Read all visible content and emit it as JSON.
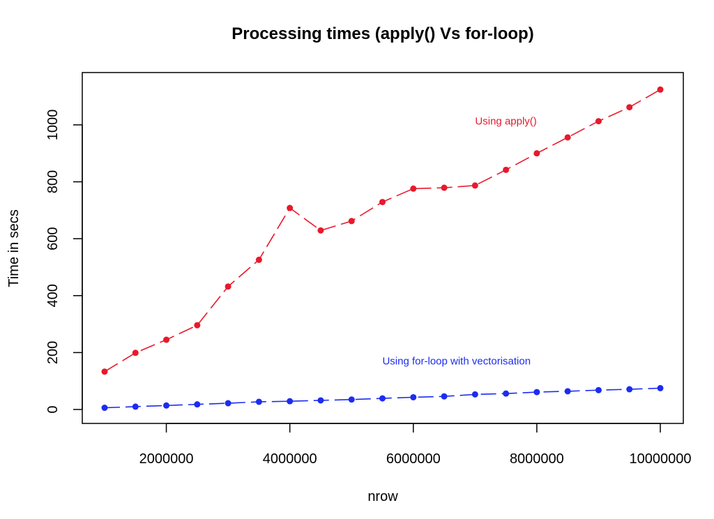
{
  "chart_data": {
    "type": "line",
    "title": "Processing times (apply() Vs for-loop)",
    "xlabel": "nrow",
    "ylabel": "Time in secs",
    "xlim": [
      1000000,
      10000000
    ],
    "ylim": [
      0,
      1125
    ],
    "x_ticks": [
      2000000,
      4000000,
      6000000,
      8000000,
      10000000
    ],
    "x_tick_labels": [
      "2000000",
      "4000000",
      "6000000",
      "8000000",
      "10000000"
    ],
    "y_ticks": [
      0,
      200,
      400,
      600,
      800,
      1000
    ],
    "y_tick_labels": [
      "0",
      "200",
      "400",
      "600",
      "800",
      "1000"
    ],
    "grid": false,
    "x": [
      1000000,
      1500000,
      2000000,
      2500000,
      3000000,
      3500000,
      4000000,
      4500000,
      5000000,
      5500000,
      6000000,
      6500000,
      7000000,
      7500000,
      8000000,
      8500000,
      9000000,
      9500000,
      10000000
    ],
    "series": [
      {
        "name": "Using apply()",
        "color": "#e8192c",
        "line_style": "dashed",
        "values": [
          133,
          199,
          245,
          296,
          432,
          526,
          708,
          629,
          662,
          729,
          776,
          779,
          787,
          842,
          900,
          956,
          1013,
          1062,
          1124
        ]
      },
      {
        "name": "Using for-loop with vectorisation",
        "color": "#1c2cf0",
        "line_style": "dashed",
        "values": [
          6,
          10,
          14,
          18,
          22,
          27,
          29,
          32,
          35,
          39,
          43,
          46,
          53,
          56,
          61,
          64,
          68,
          71,
          75
        ]
      }
    ],
    "annotations": [
      {
        "text": "Using apply()",
        "series": 0,
        "x": 7500000,
        "y": 1013
      },
      {
        "text": "Using for-loop with vectorisation",
        "series": 1,
        "x": 6700000,
        "y": 170
      }
    ]
  }
}
